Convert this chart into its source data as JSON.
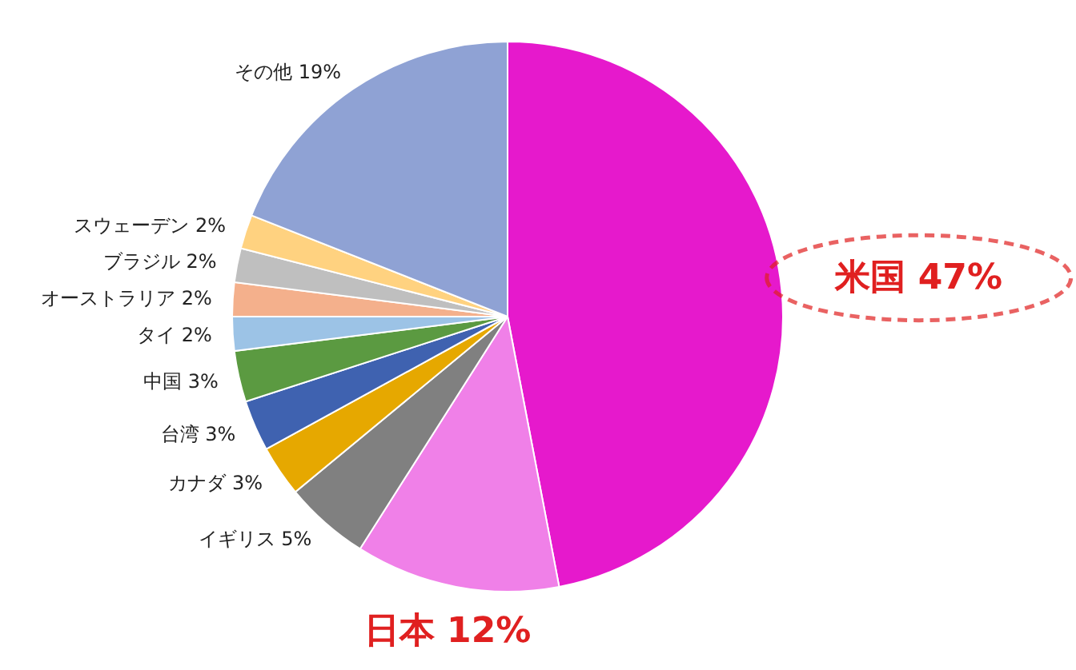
{
  "chart_data": {
    "type": "pie",
    "categories": [
      "米国",
      "日本",
      "イギリス",
      "カナダ",
      "台湾",
      "中国",
      "タイ",
      "オーストラリア",
      "ブラジル",
      "スウェーデン",
      "その他"
    ],
    "values": [
      47,
      12,
      5,
      3,
      3,
      3,
      2,
      2,
      2,
      2,
      19
    ],
    "value_labels": [
      "47%",
      "12%",
      "5%",
      "3%",
      "3%",
      "3%",
      "2%",
      "2%",
      "2%",
      "2%",
      "19%"
    ],
    "colors": [
      "#e619cc",
      "#f080e8",
      "#808080",
      "#e6a800",
      "#3f62b0",
      "#5b9a41",
      "#9cc3e6",
      "#f4b08c",
      "#bfbfbf",
      "#ffd280",
      "#8fa2d4"
    ]
  }
}
